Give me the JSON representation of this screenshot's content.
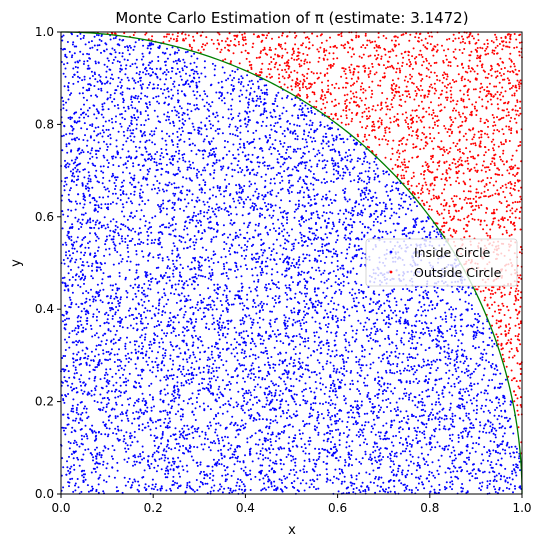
{
  "chart_data": {
    "type": "scatter",
    "title": "Monte Carlo Estimation of π (estimate: 3.1472)",
    "xlabel": "x",
    "ylabel": "y",
    "xlim": [
      0,
      1
    ],
    "ylim": [
      0,
      1
    ],
    "xticks": [
      "0.0",
      "0.2",
      "0.4",
      "0.6",
      "0.8",
      "1.0"
    ],
    "yticks": [
      "0.0",
      "0.2",
      "0.4",
      "0.6",
      "0.8",
      "1.0"
    ],
    "grid": false,
    "legend": {
      "placement": "center-right"
    },
    "pi_estimate": 3.1472,
    "total_points": 10000,
    "series": [
      {
        "name": "Inside Circle",
        "color": "#0000ff",
        "rule": "x^2 + y^2 <= 1"
      },
      {
        "name": "Outside Circle",
        "color": "#ff0000",
        "rule": "x^2 + y^2 > 1"
      }
    ],
    "boundary": {
      "type": "quarter-circle",
      "radius": 1,
      "color": "#008000"
    }
  }
}
